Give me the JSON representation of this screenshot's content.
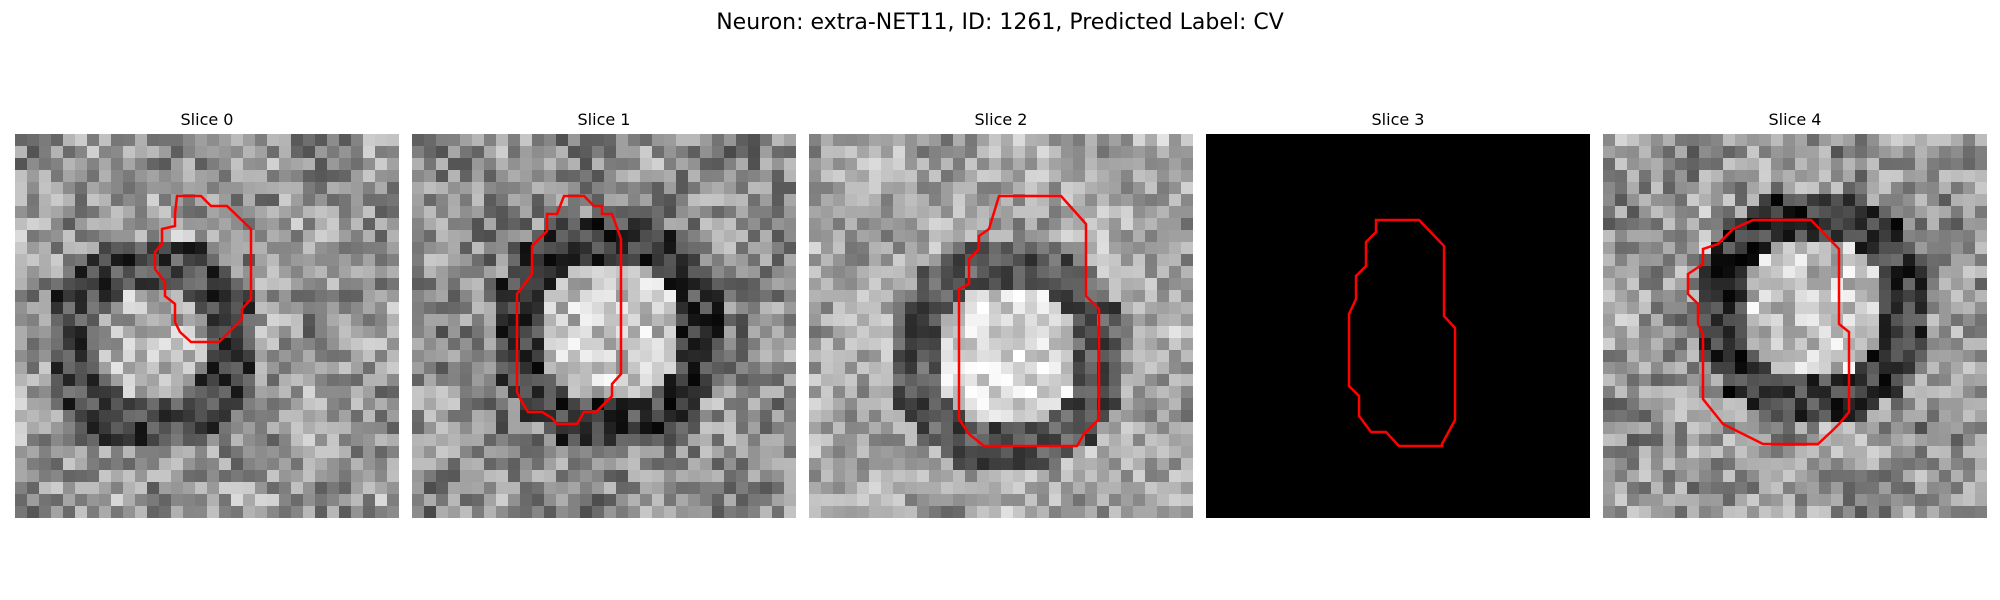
{
  "figure": {
    "title": "Neuron: extra-NET11, ID: 1261, Predicted Label: CV"
  },
  "panels": [
    {
      "title": "Slice 0",
      "image": "noisy-grayscale-microscopy-slice",
      "contour_color": "#ff0000"
    },
    {
      "title": "Slice 1",
      "image": "noisy-grayscale-microscopy-slice",
      "contour_color": "#ff0000"
    },
    {
      "title": "Slice 2",
      "image": "noisy-grayscale-microscopy-slice",
      "contour_color": "#ff0000"
    },
    {
      "title": "Slice 3",
      "image": "black-slice",
      "contour_color": "#ff0000"
    },
    {
      "title": "Slice 4",
      "image": "noisy-grayscale-microscopy-slice",
      "contour_color": "#ff0000"
    }
  ]
}
